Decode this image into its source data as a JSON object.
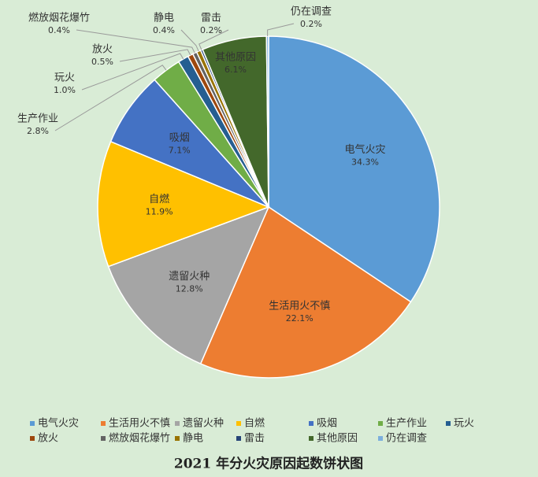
{
  "chart_data": {
    "type": "pie",
    "title": "2021 年分火灾原因起数饼状图",
    "categories": [
      "电气火灾",
      "生活用火不慎",
      "遗留火种",
      "自燃",
      "吸烟",
      "生产作业",
      "玩火",
      "放火",
      "燃放烟花爆竹",
      "静电",
      "雷击",
      "其他原因",
      "仍在调查"
    ],
    "values": [
      34.3,
      22.1,
      12.8,
      11.9,
      7.1,
      2.8,
      1.0,
      0.5,
      0.4,
      0.4,
      0.2,
      6.1,
      0.2
    ],
    "value_labels": [
      "34.3%",
      "22.1%",
      "12.8%",
      "11.9%",
      "7.1%",
      "2.8%",
      "1.0%",
      "0.5%",
      "0.4%",
      "0.4%",
      "0.2%",
      "6.1%",
      "0.2%"
    ],
    "colors": [
      "#5b9bd5",
      "#ed7d31",
      "#a5a5a5",
      "#ffc000",
      "#4472c4",
      "#70ad47",
      "#255e91",
      "#9e480e",
      "#636363",
      "#997300",
      "#264478",
      "#43682b",
      "#7cafdd"
    ]
  }
}
